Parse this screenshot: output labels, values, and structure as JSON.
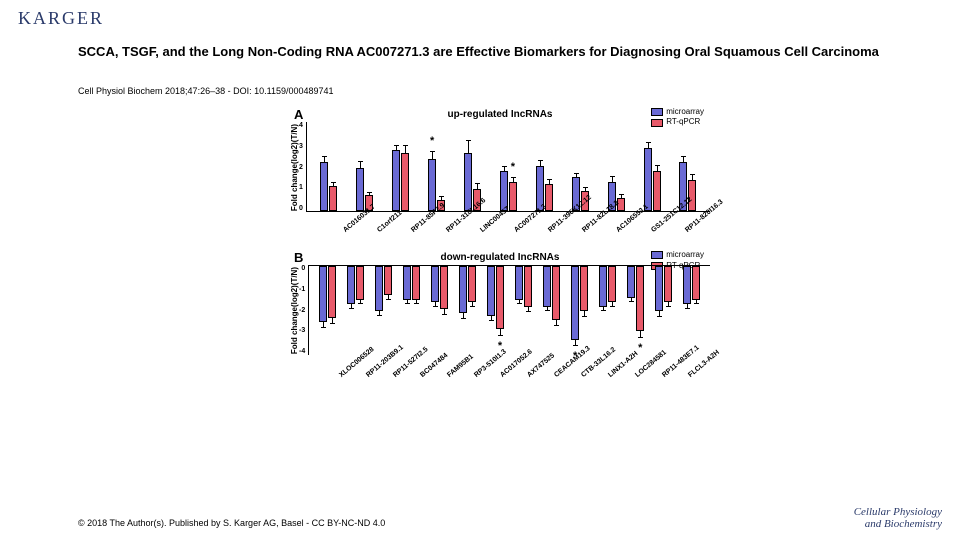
{
  "publisher_logo": "KARGER",
  "title": "SCCA, TSGF, and the Long Non-Coding RNA AC007271.3 are Effective Biomarkers for Diagnosing Oral Squamous Cell Carcinoma",
  "citation": "Cell Physiol Biochem 2018;47:26–38 -  DOI: 10.1159/000489741",
  "footer": "© 2018 The Author(s). Published by S. Karger AG, Basel - CC BY-NC-ND 4.0",
  "journal_name_line1": "Cellular Physiology",
  "journal_name_line2": "and Biochemistry",
  "colors": {
    "microarray": "#6a6ad4",
    "rtqpcr": "#e85a6a",
    "axis": "#000000",
    "bg": "#ffffff"
  },
  "legend": {
    "series1": "microarray",
    "series2": "RT-qPCR"
  },
  "panelA": {
    "letter": "A",
    "title": "up-regulated IncRNAs",
    "ylabel": "Fold change(log2)(T/N)",
    "ymax": 4,
    "yticks": [
      "4",
      "3",
      "2",
      "1",
      "0"
    ],
    "categories": [
      "AC016031.7",
      "C1orf211",
      "RP11-85F2.9",
      "RP11-318L16.6",
      "LINC00457",
      "AC007271.3",
      "RP11-396K12.12",
      "RP11-82L18.2",
      "AC106553.1",
      "GS1-251C12.12",
      "RP11-820I16.3"
    ],
    "microarray": [
      2.2,
      1.9,
      2.7,
      2.3,
      2.6,
      1.8,
      2.0,
      1.5,
      1.3,
      2.8,
      2.2
    ],
    "rtqpcr": [
      1.1,
      0.7,
      2.6,
      0.5,
      1.0,
      1.3,
      1.2,
      0.9,
      0.6,
      1.8,
      1.4
    ],
    "err_m": [
      0.3,
      0.35,
      0.3,
      0.4,
      0.6,
      0.25,
      0.3,
      0.25,
      0.3,
      0.3,
      0.3
    ],
    "err_r": [
      0.25,
      0.2,
      0.4,
      0.2,
      0.3,
      0.25,
      0.25,
      0.2,
      0.2,
      0.3,
      0.3
    ],
    "stars": [
      false,
      false,
      false,
      "m",
      false,
      "r",
      false,
      false,
      false,
      false,
      false
    ]
  },
  "panelB": {
    "letter": "B",
    "title": "down-regulated IncRNAs",
    "ylabel": "Fold change(log2)(T/N)",
    "ymin": -4,
    "yticks": [
      "0",
      "-1",
      "-2",
      "-3",
      "-4"
    ],
    "categories": [
      "XLOC006528",
      "RP11-203B9.1",
      "RP11-527I2.5",
      "BC047484",
      "FAM95B1",
      "RP3-510I1.3",
      "AC017052.6",
      "AX747525",
      "CEACAM19.3",
      "CTB-33L16.2",
      "LINX1-A2H",
      "LOC284581",
      "RP11-483E7.1",
      "FLCL3-A2H"
    ],
    "microarray": [
      2.5,
      1.7,
      2.0,
      1.5,
      1.6,
      2.1,
      2.2,
      1.5,
      1.8,
      3.3,
      1.8,
      1.4,
      2.0,
      1.7
    ],
    "rtqpcr": [
      2.3,
      1.5,
      1.3,
      1.5,
      1.9,
      1.6,
      2.8,
      1.8,
      2.4,
      2.0,
      1.6,
      2.9,
      1.6,
      1.5
    ],
    "err_m": [
      0.3,
      0.25,
      0.25,
      0.25,
      0.25,
      0.3,
      0.3,
      0.25,
      0.25,
      0.3,
      0.25,
      0.25,
      0.3,
      0.25
    ],
    "err_r": [
      0.3,
      0.25,
      0.25,
      0.25,
      0.3,
      0.25,
      0.35,
      0.3,
      0.3,
      0.3,
      0.25,
      0.35,
      0.25,
      0.25
    ],
    "stars": [
      false,
      false,
      false,
      false,
      false,
      false,
      "r",
      false,
      false,
      "m",
      false,
      "r",
      false,
      false
    ]
  }
}
